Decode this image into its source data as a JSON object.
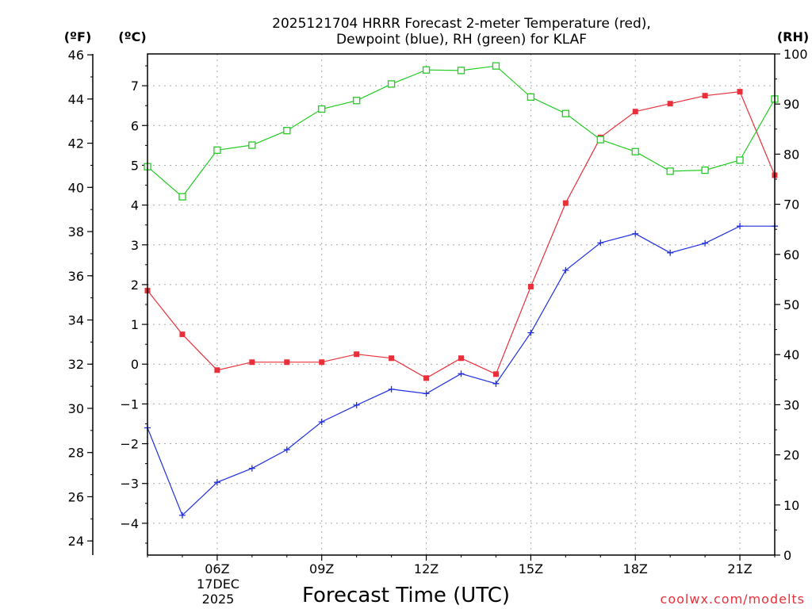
{
  "chart_data": {
    "type": "line",
    "title_line1": "2025121704 HRRR Forecast 2-meter Temperature (red),",
    "title_line2": "Dewpoint (blue), RH (green) for KLAF",
    "xlabel": "Forecast Time (UTC)",
    "credit": "coolwx.com/modelts",
    "units": {
      "f": "(ºF)",
      "c": "(ºC)",
      "rh": "(RH)"
    },
    "x_range": [
      4,
      22
    ],
    "x_ticks": [
      {
        "hour": 6,
        "label": "06Z"
      },
      {
        "hour": 9,
        "label": "09Z"
      },
      {
        "hour": 12,
        "label": "12Z"
      },
      {
        "hour": 15,
        "label": "15Z"
      },
      {
        "hour": 18,
        "label": "18Z"
      },
      {
        "hour": 21,
        "label": "21Z"
      }
    ],
    "date_line1": "17DEC",
    "date_line2": "2025",
    "c_range": [
      -4.8,
      7.8
    ],
    "c_ticks": [
      -4,
      -3,
      -2,
      -1,
      0,
      1,
      2,
      3,
      4,
      5,
      6,
      7
    ],
    "f_ticks": [
      24,
      26,
      28,
      30,
      32,
      34,
      36,
      38,
      40,
      42,
      44,
      46
    ],
    "rh_range": [
      0,
      100
    ],
    "rh_ticks": [
      0,
      10,
      20,
      30,
      40,
      50,
      60,
      70,
      80,
      90,
      100
    ],
    "hours": [
      4,
      5,
      6,
      7,
      8,
      9,
      10,
      11,
      12,
      13,
      14,
      15,
      16,
      17,
      18,
      19,
      20,
      21,
      22
    ],
    "series": [
      {
        "name": "Temperature",
        "color": "#e8303a",
        "axis": "c",
        "marker": "filled-square",
        "values": [
          1.85,
          0.75,
          -0.15,
          0.05,
          0.05,
          0.05,
          0.25,
          0.15,
          -0.35,
          0.15,
          -0.25,
          1.95,
          4.05,
          5.7,
          6.35,
          6.55,
          6.75,
          6.85,
          4.75
        ]
      },
      {
        "name": "Dewpoint",
        "color": "#2030e0",
        "axis": "c",
        "marker": "plus",
        "values": [
          -1.6,
          -3.8,
          -2.97,
          -2.62,
          -2.15,
          -1.45,
          -1.03,
          -0.63,
          -0.74,
          -0.24,
          -0.49,
          0.79,
          2.36,
          3.05,
          3.28,
          2.8,
          3.04,
          3.47,
          3.47
        ]
      },
      {
        "name": "RH",
        "color": "#22cc22",
        "axis": "rh",
        "marker": "open-square",
        "values": [
          77.5,
          71.5,
          80.8,
          81.8,
          84.7,
          89.0,
          90.7,
          94.0,
          96.8,
          96.7,
          97.6,
          91.4,
          88.1,
          82.9,
          80.5,
          76.6,
          76.8,
          78.8,
          91.0
        ]
      }
    ]
  }
}
